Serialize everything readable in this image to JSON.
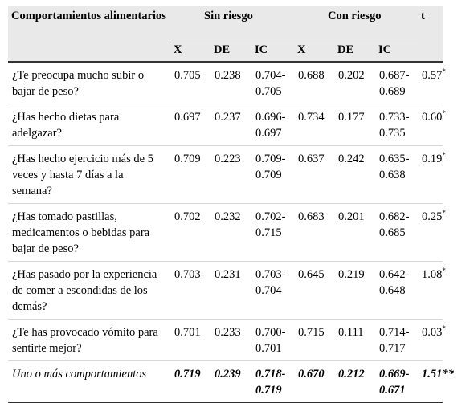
{
  "table": {
    "header": {
      "label": "Comportamientos alimentarios",
      "groups": [
        "Sin riesgo",
        "Con riesgo"
      ],
      "t": "t",
      "subheaders": [
        "X",
        "DE",
        "IC",
        "X",
        "DE",
        "IC"
      ]
    },
    "rows": [
      {
        "label": "¿Te preocupa mucho subir o bajar de peso?",
        "cells": [
          "0.705",
          "0.238",
          "0.704-0.705",
          "0.688",
          "0.202",
          "0.687-0.689"
        ],
        "t": "0.57",
        "t_note": "*"
      },
      {
        "label": "¿Has hecho dietas para adelgazar?",
        "cells": [
          "0.697",
          "0.237",
          "0.696-0.697",
          "0.734",
          "0.177",
          "0.733-0.735"
        ],
        "t": "0.60",
        "t_note": "*"
      },
      {
        "label": "¿Has hecho ejercicio más de 5 veces y hasta 7 días a la semana?",
        "cells": [
          "0.709",
          "0.223",
          "0.709-0.709",
          "0.637",
          "0.242",
          "0.635-0.638"
        ],
        "t": "0.19",
        "t_note": "*"
      },
      {
        "label": "¿Has tomado pastillas, medicamentos o bebidas para bajar de peso?",
        "cells": [
          "0.702",
          "0.232",
          "0.702-0.715",
          "0.683",
          "0.201",
          "0.682-0.685"
        ],
        "t": "0.25",
        "t_note": "*"
      },
      {
        "label": "¿Has pasado por la experiencia de comer a escondidas de los demás?",
        "cells": [
          "0.703",
          "0.231",
          "0.703-0.704",
          "0.645",
          "0.219",
          "0.642-0.648"
        ],
        "t": "1.08",
        "t_note": "*"
      },
      {
        "label": "¿Te has provocado vómito para sentirte mejor?",
        "cells": [
          "0.701",
          "0.233",
          "0.700-0.701",
          "0.715",
          "0.111",
          "0.714-0.717"
        ],
        "t": "0.03",
        "t_note": "*"
      },
      {
        "label": "Uno o más comportamientos",
        "cells": [
          "0.719",
          "0.239",
          "0.718-0.719",
          "0.670",
          "0.212",
          "0.669-0.671"
        ],
        "t": "1.51**"
      }
    ]
  }
}
